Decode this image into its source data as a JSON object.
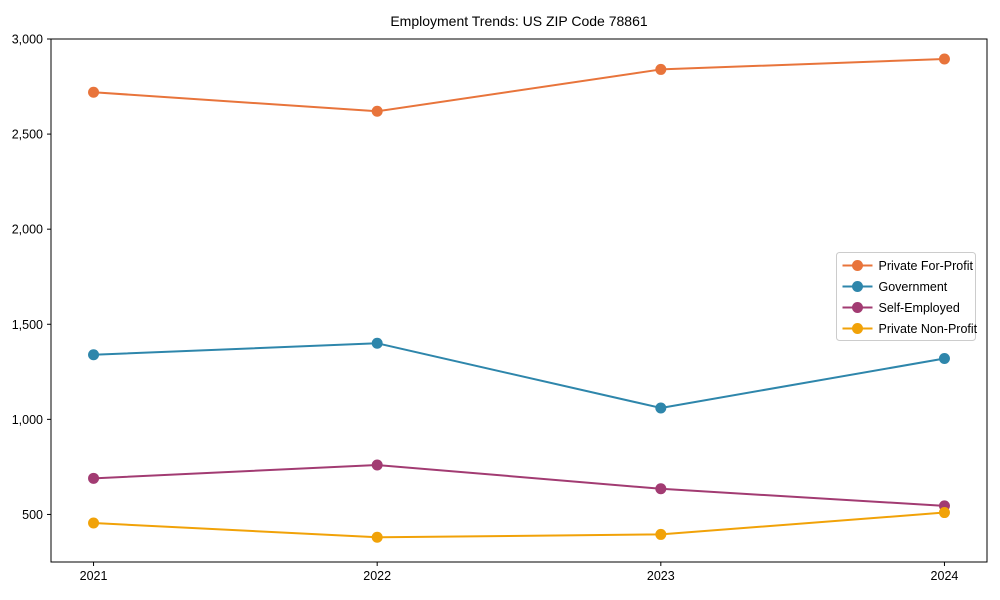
{
  "figure": {
    "title": "Employment Trends: US ZIP Code 78861",
    "background": "#ffffff",
    "spine_color": "#000000",
    "legend_border_color": "#cccccc",
    "legend_background": "#ffffff"
  },
  "chart_data": {
    "type": "line",
    "title": "Employment Trends: US ZIP Code 78861",
    "xlabel": "",
    "ylabel": "",
    "x": [
      2021,
      2022,
      2023,
      2024
    ],
    "x_tick_labels": [
      "2021",
      "2022",
      "2023",
      "2024"
    ],
    "y_ticks": [
      500,
      1000,
      1500,
      2000,
      2500,
      3000
    ],
    "y_tick_labels": [
      "500",
      "1,000",
      "1,500",
      "2,000",
      "2,500",
      "3,000"
    ],
    "xlim": [
      2020.85,
      2024.15
    ],
    "ylim": [
      250,
      3000
    ],
    "grid": false,
    "legend_position": "center-right",
    "series": [
      {
        "name": "Private For-Profit",
        "color": "#E8743B",
        "values": [
          2720,
          2620,
          2840,
          2895
        ]
      },
      {
        "name": "Government",
        "color": "#2E86AB",
        "values": [
          1340,
          1400,
          1060,
          1320
        ]
      },
      {
        "name": "Self-Employed",
        "color": "#A23B72",
        "values": [
          690,
          760,
          635,
          545
        ]
      },
      {
        "name": "Private Non-Profit",
        "color": "#F1A208",
        "values": [
          455,
          380,
          395,
          510
        ]
      }
    ]
  }
}
